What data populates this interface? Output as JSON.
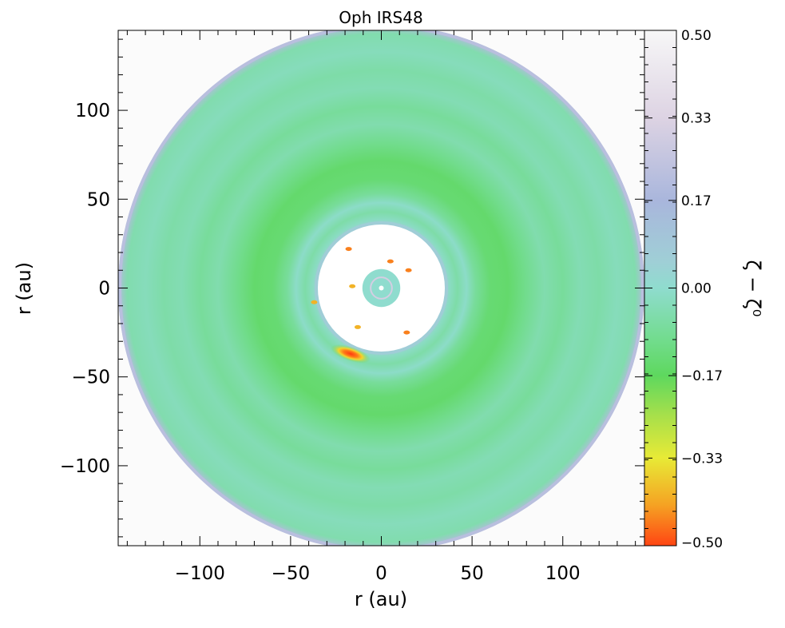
{
  "chart_data": {
    "type": "heatmap",
    "title": "Oph IRS48",
    "xlabel": "r (au)",
    "ylabel": "r (au)",
    "xlim": [
      -145,
      145
    ],
    "ylim": [
      -145,
      145
    ],
    "x_ticks": [
      -100,
      -50,
      0,
      50,
      100
    ],
    "y_ticks": [
      100,
      50,
      0,
      -50,
      -100
    ],
    "x_tick_labels": [
      "−100",
      "−50",
      "0",
      "50",
      "100"
    ],
    "y_tick_labels": [
      "100",
      "50",
      "0",
      "−50",
      "−100"
    ],
    "colorbar": {
      "label": "ζ − ζ⁰",
      "range": [
        -0.5,
        0.5
      ],
      "ticks": [
        0.5,
        0.33,
        0.17,
        0.0,
        -0.17,
        -0.33,
        -0.5
      ],
      "tick_labels": [
        "0.50",
        "0.33",
        "0.17",
        "0.00",
        "−0.17",
        "−0.33",
        "−0.50"
      ],
      "colormap": [
        {
          "value": 0.5,
          "color": "#f7f7f7"
        },
        {
          "value": 0.33,
          "color": "#ddd3e3"
        },
        {
          "value": 0.17,
          "color": "#a9b6dc"
        },
        {
          "value": 0.05,
          "color": "#9fcfd6"
        },
        {
          "value": 0.0,
          "color": "#8fdcce"
        },
        {
          "value": -0.1,
          "color": "#72dc8e"
        },
        {
          "value": -0.17,
          "color": "#5ed85e"
        },
        {
          "value": -0.25,
          "color": "#a9e04a"
        },
        {
          "value": -0.33,
          "color": "#e8ea36"
        },
        {
          "value": -0.42,
          "color": "#f5a323"
        },
        {
          "value": -0.5,
          "color": "#ff4513"
        }
      ]
    },
    "disk": {
      "outer_radius_au": 145,
      "cavity_radius_au": 35,
      "inner_ring_au": [
        5,
        10
      ],
      "radial_profile": [
        {
          "r": 10,
          "value": 0.0
        },
        {
          "r": 35,
          "value": 0.05
        },
        {
          "r": 38,
          "value": -0.02
        },
        {
          "r": 42,
          "value": -0.06
        },
        {
          "r": 47,
          "value": -0.01
        },
        {
          "r": 52,
          "value": -0.08
        },
        {
          "r": 60,
          "value": -0.14
        },
        {
          "r": 70,
          "value": -0.15
        },
        {
          "r": 80,
          "value": -0.1
        },
        {
          "r": 90,
          "value": -0.05
        },
        {
          "r": 100,
          "value": -0.08
        },
        {
          "r": 110,
          "value": -0.04
        },
        {
          "r": 120,
          "value": -0.06
        },
        {
          "r": 130,
          "value": -0.03
        },
        {
          "r": 140,
          "value": -0.05
        },
        {
          "r": 145,
          "value": 0.2
        }
      ],
      "hotspots": [
        {
          "x": -17,
          "y": -37,
          "value": -0.5
        },
        {
          "x": 15,
          "y": 10,
          "value": -0.45
        },
        {
          "x": 5,
          "y": 15,
          "value": -0.45
        },
        {
          "x": -18,
          "y": 22,
          "value": -0.45
        },
        {
          "x": 14,
          "y": -25,
          "value": -0.45
        },
        {
          "x": -13,
          "y": -22,
          "value": -0.4
        },
        {
          "x": -37,
          "y": -8,
          "value": -0.4
        },
        {
          "x": -16,
          "y": 1,
          "value": -0.4
        }
      ]
    }
  }
}
